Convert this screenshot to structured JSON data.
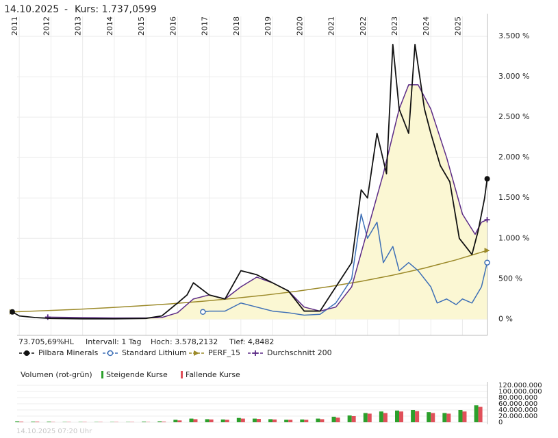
{
  "header": {
    "date": "14.10.2025",
    "separator": "-",
    "price": "Kurs: 1.737,0599"
  },
  "chart_data": [
    {
      "type": "line",
      "stats": [
        "73.705,69%HL",
        "Intervall: 1 Tag",
        "Hoch: 3.578,2132",
        "Tief: 4,8482"
      ],
      "xlim": [
        2010.78,
        2025.79
      ],
      "xticks": [
        2011,
        2012,
        2013,
        2014,
        2015,
        2016,
        2017,
        2018,
        2019,
        2020,
        2021,
        2022,
        2023,
        2024,
        2025
      ],
      "ylim": [
        -200,
        3780
      ],
      "yticks": [
        {
          "value": 0,
          "label": "0 %"
        },
        {
          "value": 500,
          "label": "500 %"
        },
        {
          "value": 1000,
          "label": "1.000 %"
        },
        {
          "value": 1500,
          "label": "1.500 %"
        },
        {
          "value": 2000,
          "label": "2.000 %"
        },
        {
          "value": 2500,
          "label": "2.500 %"
        },
        {
          "value": 3000,
          "label": "3.000 %"
        },
        {
          "value": 3500,
          "label": "3.500 %"
        }
      ],
      "grid": true,
      "area_color": "#fbf7d3",
      "area_series": 3,
      "series": [
        {
          "name": "Pilbara Minerals",
          "color": "#111111",
          "x": [
            2010.78,
            2011.0,
            2011.5,
            2012.0,
            2013.0,
            2014.0,
            2015.0,
            2015.5,
            2016.0,
            2016.3,
            2016.5,
            2017.0,
            2017.5,
            2018.0,
            2018.5,
            2019.0,
            2019.5,
            2020.0,
            2020.5,
            2021.0,
            2021.5,
            2021.8,
            2022.0,
            2022.3,
            2022.6,
            2022.8,
            2023.0,
            2023.3,
            2023.5,
            2023.8,
            2024.0,
            2024.3,
            2024.6,
            2024.9,
            2025.1,
            2025.3,
            2025.5,
            2025.7,
            2025.78
          ],
          "values": [
            90,
            40,
            20,
            10,
            5,
            5,
            10,
            40,
            200,
            300,
            450,
            300,
            250,
            600,
            550,
            450,
            350,
            100,
            100,
            400,
            700,
            1600,
            1500,
            2300,
            1800,
            3400,
            2600,
            2300,
            3400,
            2600,
            2300,
            1900,
            1700,
            1000,
            900,
            800,
            1100,
            1500,
            1737
          ]
        },
        {
          "name": "Standard Lithium",
          "color": "#3d6fb6",
          "x": [
            2016.8,
            2017.0,
            2017.5,
            2018.0,
            2018.5,
            2019.0,
            2019.5,
            2020.0,
            2020.5,
            2021.0,
            2021.5,
            2021.8,
            2022.0,
            2022.3,
            2022.5,
            2022.8,
            2023.0,
            2023.3,
            2023.6,
            2024.0,
            2024.2,
            2024.5,
            2024.8,
            2025.0,
            2025.3,
            2025.6,
            2025.78
          ],
          "values": [
            90,
            100,
            100,
            200,
            150,
            100,
            80,
            50,
            60,
            200,
            500,
            1300,
            1000,
            1200,
            700,
            900,
            600,
            700,
            600,
            400,
            200,
            250,
            180,
            250,
            200,
            400,
            700
          ]
        },
        {
          "name": "PERF_15",
          "color": "#9c8a2a",
          "x": [
            2010.78,
            2011.78,
            2012.78,
            2013.78,
            2014.78,
            2015.78,
            2016.78,
            2017.78,
            2018.78,
            2019.78,
            2020.78,
            2021.78,
            2022.78,
            2023.78,
            2024.78,
            2025.78
          ],
          "values": [
            90,
            105,
            121,
            141,
            164,
            190,
            221,
            257,
            298,
            346,
            402,
            467,
            543,
            630,
            732,
            850
          ]
        },
        {
          "name": "Durchschnitt 200",
          "color": "#5b2a86",
          "x": [
            2011.9,
            2013.0,
            2014.0,
            2015.0,
            2015.5,
            2016.0,
            2016.5,
            2017.0,
            2017.5,
            2018.0,
            2018.5,
            2019.0,
            2019.5,
            2020.0,
            2020.5,
            2021.0,
            2021.5,
            2022.0,
            2022.5,
            2023.0,
            2023.3,
            2023.6,
            2024.0,
            2024.5,
            2025.0,
            2025.4,
            2025.6,
            2025.78
          ],
          "values": [
            25,
            20,
            15,
            15,
            20,
            80,
            250,
            300,
            250,
            400,
            520,
            450,
            350,
            150,
            100,
            150,
            400,
            1100,
            1800,
            2600,
            2900,
            2900,
            2600,
            2000,
            1300,
            1050,
            1200,
            1230
          ]
        }
      ]
    },
    {
      "type": "bar",
      "title": "Volumen (rot-grün)",
      "xlim": [
        2010.78,
        2025.79
      ],
      "ylim": [
        0,
        120000000
      ],
      "yticks": [
        {
          "value": 120000000,
          "label": "120.000.000"
        },
        {
          "value": 100000000,
          "label": "100.000.000"
        },
        {
          "value": 80000000,
          "label": "80.000.000"
        },
        {
          "value": 60000000,
          "label": "60.000.000"
        },
        {
          "value": 40000000,
          "label": "40.000.000"
        },
        {
          "value": 20000000,
          "label": "20.000.000"
        },
        0
      ],
      "x": [
        2011.0,
        2011.5,
        2012.0,
        2012.5,
        2013.0,
        2013.5,
        2014.0,
        2014.5,
        2015.0,
        2015.5,
        2016.0,
        2016.5,
        2017.0,
        2017.5,
        2018.0,
        2018.5,
        2019.0,
        2019.5,
        2020.0,
        2020.5,
        2021.0,
        2021.5,
        2022.0,
        2022.5,
        2023.0,
        2023.5,
        2024.0,
        2024.5,
        2025.0,
        2025.5
      ],
      "series": [
        {
          "name": "Steigende Kurse",
          "color": "#2ca02c",
          "values": [
            3000000,
            2000000,
            2000000,
            1000000,
            1000000,
            1000000,
            1000000,
            1000000,
            2000000,
            3000000,
            8000000,
            12000000,
            10000000,
            9000000,
            14000000,
            12000000,
            10000000,
            8000000,
            9000000,
            12000000,
            18000000,
            22000000,
            30000000,
            35000000,
            38000000,
            40000000,
            33000000,
            30000000,
            40000000,
            55000000
          ]
        },
        {
          "name": "Fallende Kurse",
          "color": "#e0505a",
          "values": [
            2000000,
            2000000,
            1000000,
            1000000,
            1000000,
            1000000,
            1000000,
            1000000,
            1000000,
            2000000,
            6000000,
            10000000,
            9000000,
            8000000,
            12000000,
            11000000,
            9000000,
            8000000,
            8000000,
            10000000,
            15000000,
            20000000,
            28000000,
            30000000,
            35000000,
            36000000,
            30000000,
            28000000,
            35000000,
            50000000
          ]
        }
      ]
    }
  ],
  "footer": {
    "timestamp": "14.10.2025 07:20 Uhr"
  }
}
